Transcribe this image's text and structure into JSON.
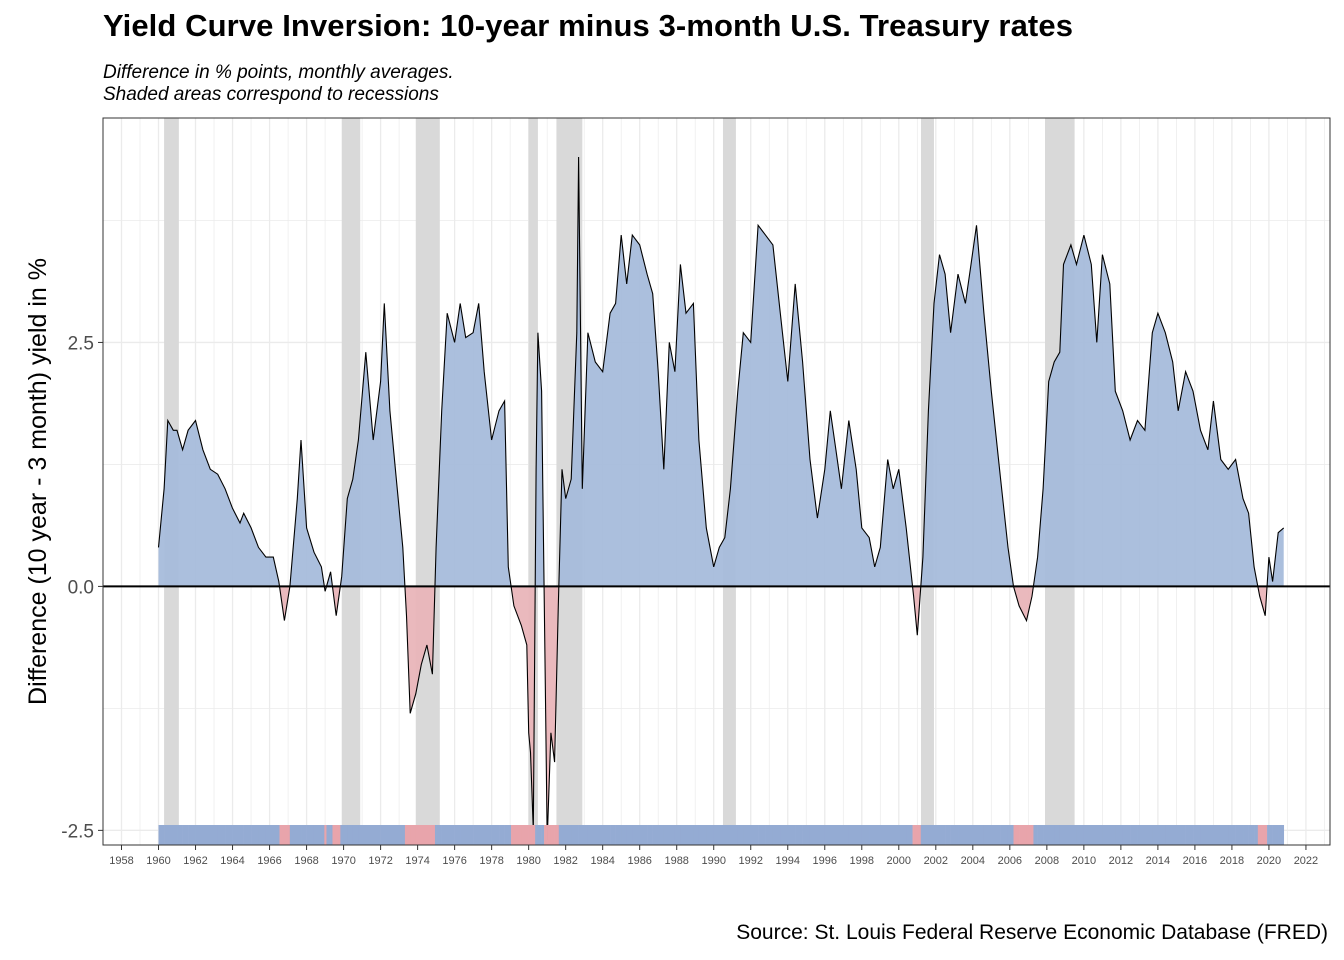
{
  "title": "Yield Curve Inversion: 10-year minus 3-month U.S. Treasury rates",
  "subtitle_line1": "Difference in % points, monthly averages.",
  "subtitle_line2": "Shaded areas correspond to recessions",
  "source": "Source: St. Louis Federal Reserve Economic Database (FRED)",
  "colors": {
    "positive": "#a7bcdb",
    "negative": "#e9b5b9",
    "recession": "#d9d9d9",
    "stripe_positive": "#94abd3",
    "stripe_negative": "#e8a4ab"
  },
  "chart_data": {
    "type": "area",
    "title": "Yield Curve Inversion: 10-year minus 3-month U.S. Treasury rates",
    "ylabel": "Difference (10 year - 3 month) yield in %",
    "xlabel": "",
    "xlim": [
      1957.0,
      2023.3
    ],
    "ylim": [
      -2.65,
      4.8
    ],
    "yticks": [
      -2.5,
      0.0,
      2.5
    ],
    "ytick_labels": [
      "-2.5",
      "0.0",
      "2.5"
    ],
    "xticks": [
      1958,
      1960,
      1962,
      1964,
      1966,
      1968,
      1970,
      1972,
      1974,
      1976,
      1978,
      1980,
      1982,
      1984,
      1986,
      1988,
      1990,
      1992,
      1994,
      1996,
      1998,
      2000,
      2002,
      2004,
      2006,
      2008,
      2010,
      2012,
      2014,
      2016,
      2018,
      2020,
      2022
    ],
    "grid": true,
    "recessions": [
      [
        1960.3,
        1961.1
      ],
      [
        1969.9,
        1970.9
      ],
      [
        1973.9,
        1975.2
      ],
      [
        1980.0,
        1980.5
      ],
      [
        1981.5,
        1982.9
      ],
      [
        1990.5,
        1991.2
      ],
      [
        2001.2,
        2001.9
      ],
      [
        2007.9,
        2009.5
      ]
    ],
    "series": [
      {
        "values": [
          [
            1960.0,
            0.4
          ],
          [
            1960.3,
            1.0
          ],
          [
            1960.5,
            1.7
          ],
          [
            1960.8,
            1.6
          ],
          [
            1961.0,
            1.6
          ],
          [
            1961.3,
            1.4
          ],
          [
            1961.6,
            1.6
          ],
          [
            1962.0,
            1.7
          ],
          [
            1962.4,
            1.4
          ],
          [
            1962.8,
            1.2
          ],
          [
            1963.2,
            1.15
          ],
          [
            1963.6,
            1.0
          ],
          [
            1964.0,
            0.8
          ],
          [
            1964.4,
            0.65
          ],
          [
            1964.6,
            0.75
          ],
          [
            1965.0,
            0.6
          ],
          [
            1965.4,
            0.4
          ],
          [
            1965.8,
            0.3
          ],
          [
            1966.2,
            0.3
          ],
          [
            1966.5,
            0.05
          ],
          [
            1966.8,
            -0.35
          ],
          [
            1967.1,
            0.0
          ],
          [
            1967.5,
            0.9
          ],
          [
            1967.7,
            1.5
          ],
          [
            1968.0,
            0.6
          ],
          [
            1968.4,
            0.35
          ],
          [
            1968.8,
            0.2
          ],
          [
            1969.0,
            -0.05
          ],
          [
            1969.3,
            0.15
          ],
          [
            1969.6,
            -0.3
          ],
          [
            1969.9,
            0.1
          ],
          [
            1970.2,
            0.9
          ],
          [
            1970.5,
            1.1
          ],
          [
            1970.8,
            1.5
          ],
          [
            1971.2,
            2.4
          ],
          [
            1971.6,
            1.5
          ],
          [
            1972.0,
            2.1
          ],
          [
            1972.2,
            2.9
          ],
          [
            1972.5,
            1.8
          ],
          [
            1972.8,
            1.2
          ],
          [
            1973.2,
            0.4
          ],
          [
            1973.4,
            -0.3
          ],
          [
            1973.6,
            -1.3
          ],
          [
            1973.9,
            -1.1
          ],
          [
            1974.2,
            -0.8
          ],
          [
            1974.5,
            -0.6
          ],
          [
            1974.8,
            -0.9
          ],
          [
            1975.0,
            0.4
          ],
          [
            1975.3,
            1.8
          ],
          [
            1975.6,
            2.8
          ],
          [
            1976.0,
            2.5
          ],
          [
            1976.3,
            2.9
          ],
          [
            1976.6,
            2.55
          ],
          [
            1977.0,
            2.6
          ],
          [
            1977.3,
            2.9
          ],
          [
            1977.6,
            2.2
          ],
          [
            1978.0,
            1.5
          ],
          [
            1978.4,
            1.8
          ],
          [
            1978.7,
            1.9
          ],
          [
            1978.9,
            0.2
          ],
          [
            1979.2,
            -0.2
          ],
          [
            1979.6,
            -0.4
          ],
          [
            1979.9,
            -0.6
          ],
          [
            1980.0,
            -1.5
          ],
          [
            1980.1,
            -1.7
          ],
          [
            1980.25,
            -2.5
          ],
          [
            1980.4,
            1.2
          ],
          [
            1980.5,
            2.6
          ],
          [
            1980.7,
            2.0
          ],
          [
            1980.9,
            -1.0
          ],
          [
            1981.0,
            -2.6
          ],
          [
            1981.2,
            -1.5
          ],
          [
            1981.4,
            -1.8
          ],
          [
            1981.6,
            -0.2
          ],
          [
            1981.8,
            1.2
          ],
          [
            1982.0,
            0.9
          ],
          [
            1982.3,
            1.1
          ],
          [
            1982.6,
            2.6
          ],
          [
            1982.7,
            4.4
          ],
          [
            1982.9,
            1.0
          ],
          [
            1983.2,
            2.6
          ],
          [
            1983.6,
            2.3
          ],
          [
            1984.0,
            2.2
          ],
          [
            1984.4,
            2.8
          ],
          [
            1984.7,
            2.9
          ],
          [
            1985.0,
            3.6
          ],
          [
            1985.3,
            3.1
          ],
          [
            1985.6,
            3.6
          ],
          [
            1986.0,
            3.5
          ],
          [
            1986.4,
            3.2
          ],
          [
            1986.7,
            3.0
          ],
          [
            1987.0,
            2.2
          ],
          [
            1987.3,
            1.2
          ],
          [
            1987.6,
            2.5
          ],
          [
            1987.9,
            2.2
          ],
          [
            1988.2,
            3.3
          ],
          [
            1988.5,
            2.8
          ],
          [
            1988.9,
            2.9
          ],
          [
            1989.2,
            1.5
          ],
          [
            1989.6,
            0.6
          ],
          [
            1990.0,
            0.2
          ],
          [
            1990.3,
            0.4
          ],
          [
            1990.6,
            0.5
          ],
          [
            1990.9,
            1.0
          ],
          [
            1991.3,
            2.0
          ],
          [
            1991.6,
            2.6
          ],
          [
            1992.0,
            2.5
          ],
          [
            1992.4,
            3.7
          ],
          [
            1992.8,
            3.6
          ],
          [
            1993.2,
            3.5
          ],
          [
            1993.6,
            2.8
          ],
          [
            1994.0,
            2.1
          ],
          [
            1994.4,
            3.1
          ],
          [
            1994.8,
            2.3
          ],
          [
            1995.2,
            1.3
          ],
          [
            1995.6,
            0.7
          ],
          [
            1996.0,
            1.2
          ],
          [
            1996.3,
            1.8
          ],
          [
            1996.6,
            1.4
          ],
          [
            1996.9,
            1.0
          ],
          [
            1997.3,
            1.7
          ],
          [
            1997.7,
            1.2
          ],
          [
            1998.0,
            0.6
          ],
          [
            1998.4,
            0.5
          ],
          [
            1998.7,
            0.2
          ],
          [
            1999.0,
            0.4
          ],
          [
            1999.4,
            1.3
          ],
          [
            1999.7,
            1.0
          ],
          [
            2000.0,
            1.2
          ],
          [
            2000.4,
            0.6
          ],
          [
            2000.8,
            -0.1
          ],
          [
            2001.0,
            -0.5
          ],
          [
            2001.3,
            0.3
          ],
          [
            2001.6,
            1.8
          ],
          [
            2001.9,
            2.9
          ],
          [
            2002.2,
            3.4
          ],
          [
            2002.5,
            3.2
          ],
          [
            2002.8,
            2.6
          ],
          [
            2003.2,
            3.2
          ],
          [
            2003.6,
            2.9
          ],
          [
            2003.9,
            3.3
          ],
          [
            2004.2,
            3.7
          ],
          [
            2004.6,
            2.8
          ],
          [
            2005.0,
            2.0
          ],
          [
            2005.5,
            1.1
          ],
          [
            2005.9,
            0.4
          ],
          [
            2006.2,
            0.0
          ],
          [
            2006.5,
            -0.2
          ],
          [
            2006.9,
            -0.35
          ],
          [
            2007.2,
            -0.1
          ],
          [
            2007.5,
            0.3
          ],
          [
            2007.8,
            1.0
          ],
          [
            2008.1,
            2.1
          ],
          [
            2008.4,
            2.3
          ],
          [
            2008.7,
            2.4
          ],
          [
            2008.9,
            3.3
          ],
          [
            2009.3,
            3.5
          ],
          [
            2009.6,
            3.3
          ],
          [
            2010.0,
            3.6
          ],
          [
            2010.4,
            3.3
          ],
          [
            2010.7,
            2.5
          ],
          [
            2011.0,
            3.4
          ],
          [
            2011.4,
            3.1
          ],
          [
            2011.7,
            2.0
          ],
          [
            2012.1,
            1.8
          ],
          [
            2012.5,
            1.5
          ],
          [
            2012.9,
            1.7
          ],
          [
            2013.3,
            1.6
          ],
          [
            2013.7,
            2.6
          ],
          [
            2014.0,
            2.8
          ],
          [
            2014.4,
            2.6
          ],
          [
            2014.8,
            2.3
          ],
          [
            2015.1,
            1.8
          ],
          [
            2015.5,
            2.2
          ],
          [
            2015.9,
            2.0
          ],
          [
            2016.3,
            1.6
          ],
          [
            2016.7,
            1.4
          ],
          [
            2017.0,
            1.9
          ],
          [
            2017.4,
            1.3
          ],
          [
            2017.8,
            1.2
          ],
          [
            2018.2,
            1.3
          ],
          [
            2018.6,
            0.9
          ],
          [
            2018.9,
            0.75
          ],
          [
            2019.2,
            0.2
          ],
          [
            2019.5,
            -0.1
          ],
          [
            2019.8,
            -0.3
          ],
          [
            2020.0,
            0.3
          ],
          [
            2020.2,
            0.05
          ],
          [
            2020.5,
            0.55
          ],
          [
            2020.8,
            0.6
          ]
        ]
      }
    ]
  }
}
